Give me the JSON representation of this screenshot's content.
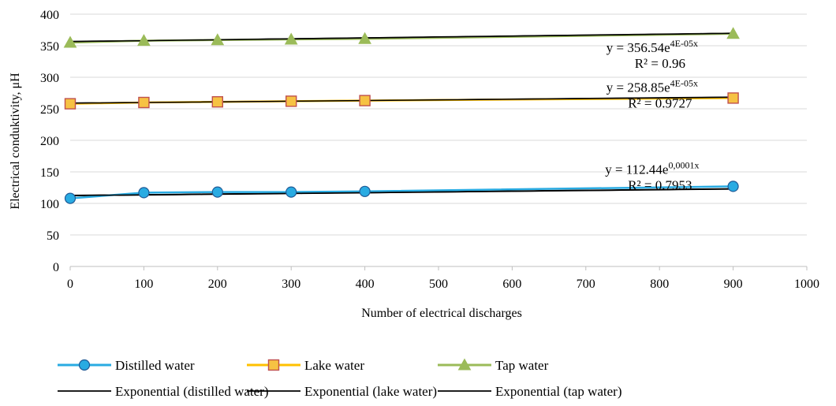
{
  "chart_data": {
    "type": "scatter",
    "xlabel": "Number of electrical discharges",
    "ylabel": "Electrical conduktivity, μH",
    "xlim": [
      0,
      1000
    ],
    "ylim": [
      0,
      400
    ],
    "x_ticks": [
      "0",
      "100",
      "200",
      "300",
      "400",
      "500",
      "600",
      "700",
      "800",
      "900",
      "1000"
    ],
    "y_ticks": [
      "0",
      "50",
      "100",
      "150",
      "200",
      "250",
      "300",
      "350",
      "400"
    ],
    "grid": "horizontal",
    "legend_position": "bottom",
    "series": [
      {
        "name": "Distilled water",
        "color": "#29abe2",
        "marker": "circle",
        "marker_fill": "#29abe2",
        "marker_stroke": "#1f5a96",
        "x": [
          0,
          100,
          200,
          300,
          400,
          900
        ],
        "y": [
          108,
          117,
          118,
          118,
          119,
          127
        ]
      },
      {
        "name": "Lake water",
        "color": "#ffc000",
        "marker": "square",
        "marker_fill": "#f6c243",
        "marker_stroke": "#c0504d",
        "x": [
          0,
          100,
          200,
          300,
          400,
          900
        ],
        "y": [
          258,
          260,
          261,
          262,
          263,
          267
        ]
      },
      {
        "name": "Tap water",
        "color": "#9bbb59",
        "marker": "triangle",
        "marker_fill": "#9bbb59",
        "marker_stroke": "#9bbb59",
        "x": [
          0,
          100,
          200,
          300,
          400,
          900
        ],
        "y": [
          355,
          358,
          359,
          360,
          361,
          369
        ]
      }
    ],
    "trendlines": [
      {
        "name": "Exponential (distilled water)",
        "color": "#000000",
        "a": 112.44,
        "b": 0.0001,
        "equation_prefix": "y = 112.44e",
        "equation_exponent": "0,0001x",
        "r2": "R² = 0.7953",
        "label_anchor": [
          790,
          147
        ]
      },
      {
        "name": "Exponential (lake water)",
        "color": "#000000",
        "a": 258.85,
        "b": 4e-05,
        "equation_prefix": "y = 258.85e",
        "equation_exponent": "4E-05x",
        "r2": "R² = 0.9727",
        "label_anchor": [
          790,
          277
        ]
      },
      {
        "name": "Exponential (tap water)",
        "color": "#000000",
        "a": 356.54,
        "b": 4e-05,
        "equation_prefix": "y = 356.54e",
        "equation_exponent": "4E-05x",
        "r2": "R² = 0.96",
        "label_anchor": [
          790,
          340
        ]
      }
    ]
  }
}
